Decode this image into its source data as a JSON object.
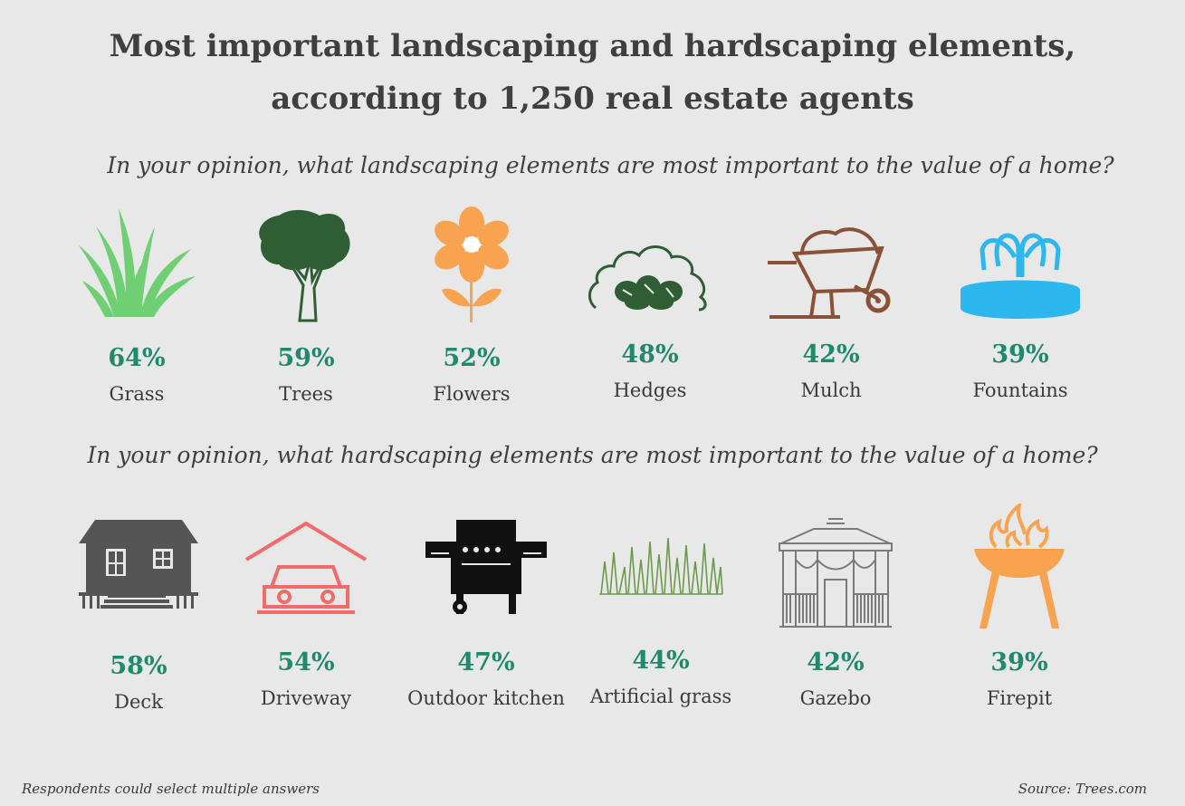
{
  "title": {
    "line1": "Most important landscaping and hardscaping elements,",
    "line2": "according to 1,250 real estate agents"
  },
  "landscaping": {
    "question": "In your opinion, what landscaping elements are most important to the value of a home?",
    "items": [
      {
        "percent": "64%",
        "label": "Grass",
        "icon": "grass-icon",
        "color": "#6fcf73"
      },
      {
        "percent": "59%",
        "label": "Trees",
        "icon": "tree-icon",
        "color": "#2f5e34"
      },
      {
        "percent": "52%",
        "label": "Flowers",
        "icon": "flower-icon",
        "color": "#f7a350"
      },
      {
        "percent": "48%",
        "label": "Hedges",
        "icon": "hedge-icon",
        "color": "#2f5e34"
      },
      {
        "percent": "42%",
        "label": "Mulch",
        "icon": "wheelbarrow-icon",
        "color": "#8a5138"
      },
      {
        "percent": "39%",
        "label": "Fountains",
        "icon": "fountain-icon",
        "color": "#2cb7ee"
      }
    ]
  },
  "hardscaping": {
    "question": "In your opinion, what hardscaping elements are most important to the value of a home?",
    "items": [
      {
        "percent": "58%",
        "label": "Deck",
        "icon": "house-deck-icon",
        "color": "#555555"
      },
      {
        "percent": "54%",
        "label": "Driveway",
        "icon": "car-garage-icon",
        "color": "#f26a6a"
      },
      {
        "percent": "47%",
        "label": "Outdoor kitchen",
        "icon": "grill-icon",
        "color": "#111111"
      },
      {
        "percent": "44%",
        "label": "Artificial grass",
        "icon": "artificial-grass-icon",
        "color": "#6a9a4a"
      },
      {
        "percent": "42%",
        "label": "Gazebo",
        "icon": "gazebo-icon",
        "color": "#7a7a7a"
      },
      {
        "percent": "39%",
        "label": "Firepit",
        "icon": "firepit-icon",
        "color": "#f7a350"
      }
    ]
  },
  "footer": {
    "note": "Respondents could select multiple answers",
    "source": "Source: Trees.com"
  },
  "colors": {
    "background": "#e8e8e8",
    "percent": "#1e8a6a",
    "text": "#3f3f3f"
  }
}
